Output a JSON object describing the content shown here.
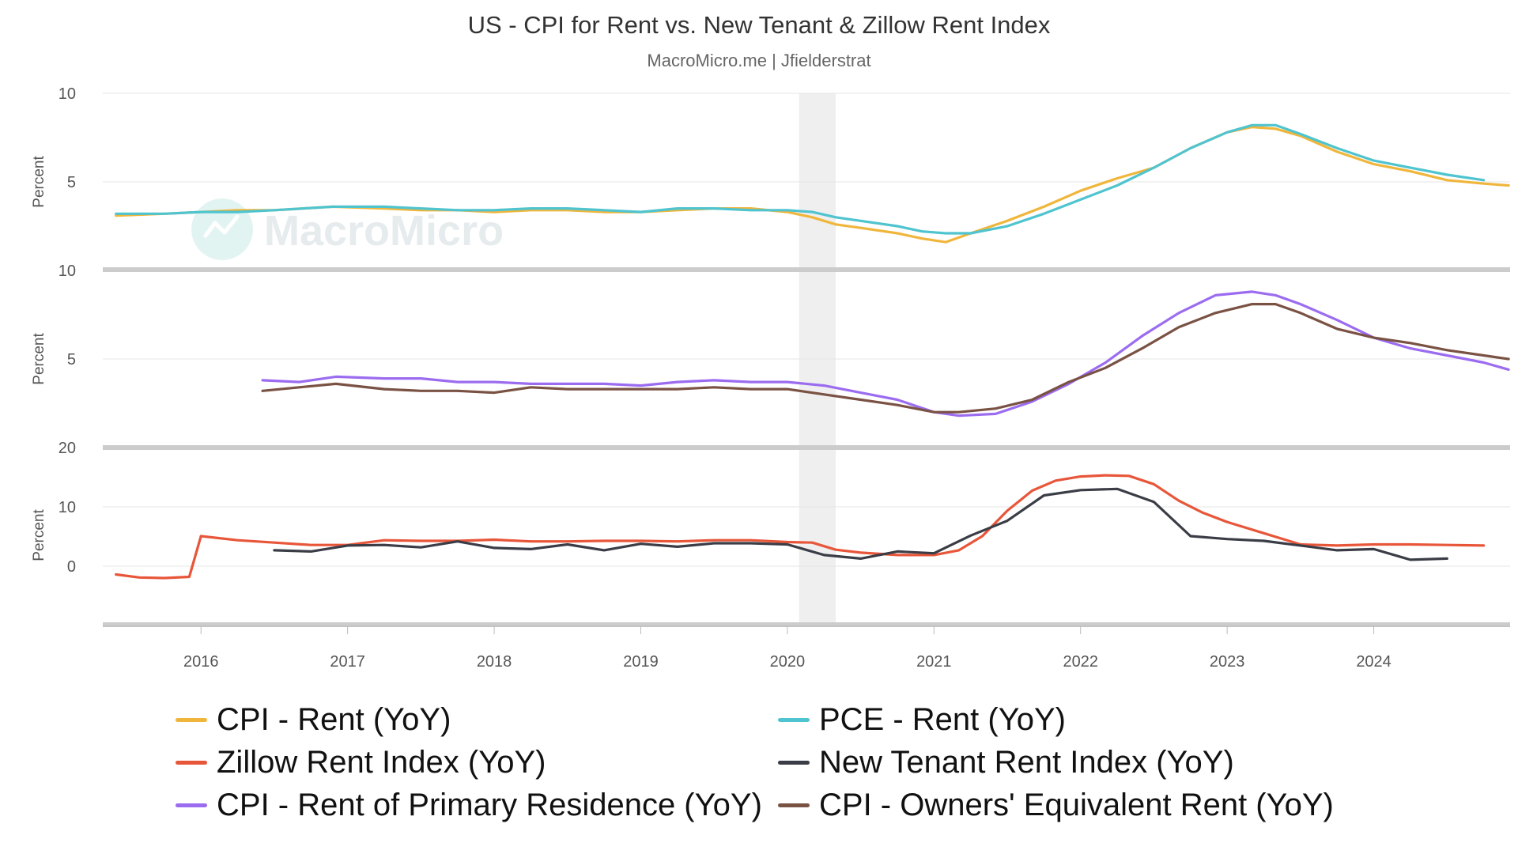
{
  "title": "US - CPI for Rent vs. New Tenant & Zillow Rent Index",
  "subtitle": "MacroMicro.me | Jfielderstrat",
  "watermark": "MacroMicro",
  "chart_data": {
    "type": "line",
    "x_axis": {
      "tick_labels": [
        "2016",
        "2017",
        "2018",
        "2019",
        "2020",
        "2021",
        "2022",
        "2023",
        "2024"
      ],
      "range": [
        2015.33,
        2024.93
      ]
    },
    "shaded_period": [
      2020.08,
      2020.33
    ],
    "panels": [
      {
        "ylabel": "Percent",
        "ylim": [
          0,
          10
        ],
        "tick_labels": [
          "10",
          "5"
        ],
        "series": [
          {
            "name": "CPI - Rent (YoY)",
            "color": "#f0b63c",
            "x": [
              2015.42,
              2015.75,
              2016.0,
              2016.25,
              2016.5,
              2016.9,
              2017.25,
              2017.5,
              2017.75,
              2018.0,
              2018.25,
              2018.5,
              2018.75,
              2019.0,
              2019.25,
              2019.5,
              2019.75,
              2020.0,
              2020.17,
              2020.33,
              2020.5,
              2020.75,
              2020.92,
              2021.08,
              2021.25,
              2021.5,
              2021.75,
              2022.0,
              2022.25,
              2022.5,
              2022.75,
              2023.0,
              2023.17,
              2023.33,
              2023.5,
              2023.75,
              2024.0,
              2024.25,
              2024.5,
              2024.75,
              2024.92
            ],
            "y": [
              3.1,
              3.2,
              3.3,
              3.4,
              3.4,
              3.6,
              3.5,
              3.4,
              3.4,
              3.3,
              3.4,
              3.4,
              3.3,
              3.3,
              3.4,
              3.5,
              3.5,
              3.3,
              3.0,
              2.6,
              2.4,
              2.1,
              1.8,
              1.6,
              2.1,
              2.8,
              3.6,
              4.5,
              5.2,
              5.8,
              6.9,
              7.8,
              8.1,
              8.0,
              7.6,
              6.7,
              6.0,
              5.6,
              5.1,
              4.9,
              4.8
            ]
          },
          {
            "name": "PCE - Rent (YoY)",
            "color": "#4fc4cf",
            "x": [
              2015.42,
              2015.75,
              2016.0,
              2016.25,
              2016.5,
              2016.9,
              2017.25,
              2017.5,
              2017.75,
              2018.0,
              2018.25,
              2018.5,
              2018.75,
              2019.0,
              2019.25,
              2019.5,
              2019.75,
              2020.0,
              2020.17,
              2020.33,
              2020.5,
              2020.75,
              2020.92,
              2021.08,
              2021.25,
              2021.5,
              2021.75,
              2022.0,
              2022.25,
              2022.5,
              2022.75,
              2023.0,
              2023.17,
              2023.33,
              2023.5,
              2023.75,
              2024.0,
              2024.25,
              2024.5,
              2024.75
            ],
            "y": [
              3.2,
              3.2,
              3.3,
              3.3,
              3.4,
              3.6,
              3.6,
              3.5,
              3.4,
              3.4,
              3.5,
              3.5,
              3.4,
              3.3,
              3.5,
              3.5,
              3.4,
              3.4,
              3.3,
              3.0,
              2.8,
              2.5,
              2.2,
              2.1,
              2.1,
              2.5,
              3.2,
              4.0,
              4.8,
              5.8,
              6.9,
              7.8,
              8.2,
              8.2,
              7.7,
              6.9,
              6.2,
              5.8,
              5.4,
              5.1
            ]
          }
        ]
      },
      {
        "ylabel": "Percent",
        "ylim": [
          0,
          10
        ],
        "tick_labels": [
          "10",
          "5"
        ],
        "series": [
          {
            "name": "CPI - Rent of Primary Residence (YoY)",
            "color": "#9b6cf0",
            "x": [
              2016.42,
              2016.67,
              2016.92,
              2017.25,
              2017.5,
              2017.75,
              2018.0,
              2018.25,
              2018.5,
              2018.75,
              2019.0,
              2019.25,
              2019.5,
              2019.75,
              2020.0,
              2020.25,
              2020.5,
              2020.75,
              2021.0,
              2021.17,
              2021.42,
              2021.67,
              2021.92,
              2022.17,
              2022.42,
              2022.67,
              2022.92,
              2023.17,
              2023.33,
              2023.5,
              2023.75,
              2024.0,
              2024.25,
              2024.5,
              2024.75,
              2024.92
            ],
            "y": [
              3.8,
              3.7,
              4.0,
              3.9,
              3.9,
              3.7,
              3.7,
              3.6,
              3.6,
              3.6,
              3.5,
              3.7,
              3.8,
              3.7,
              3.7,
              3.5,
              3.1,
              2.7,
              2.0,
              1.8,
              1.9,
              2.6,
              3.6,
              4.8,
              6.3,
              7.6,
              8.6,
              8.8,
              8.6,
              8.1,
              7.2,
              6.2,
              5.6,
              5.2,
              4.8,
              4.4
            ]
          },
          {
            "name": "CPI - Owners' Equivalent Rent (YoY)",
            "color": "#7a5244",
            "x": [
              2016.42,
              2016.67,
              2016.92,
              2017.25,
              2017.5,
              2017.75,
              2018.0,
              2018.25,
              2018.5,
              2018.75,
              2019.0,
              2019.25,
              2019.5,
              2019.75,
              2020.0,
              2020.25,
              2020.5,
              2020.75,
              2021.0,
              2021.17,
              2021.42,
              2021.67,
              2021.92,
              2022.17,
              2022.42,
              2022.67,
              2022.92,
              2023.17,
              2023.33,
              2023.5,
              2023.75,
              2024.0,
              2024.25,
              2024.5,
              2024.75,
              2024.92
            ],
            "y": [
              3.2,
              3.4,
              3.6,
              3.3,
              3.2,
              3.2,
              3.1,
              3.4,
              3.3,
              3.3,
              3.3,
              3.3,
              3.4,
              3.3,
              3.3,
              3.0,
              2.7,
              2.4,
              2.0,
              2.0,
              2.2,
              2.7,
              3.7,
              4.5,
              5.6,
              6.8,
              7.6,
              8.1,
              8.1,
              7.6,
              6.7,
              6.2,
              5.9,
              5.5,
              5.2,
              5.0
            ]
          }
        ]
      },
      {
        "ylabel": "Percent",
        "ylim": [
          -10,
          20
        ],
        "tick_labels": [
          "20",
          "10",
          "0"
        ],
        "series": [
          {
            "name": "Zillow Rent Index (YoY)",
            "color": "#e8563a",
            "x": [
              2015.42,
              2015.58,
              2015.75,
              2015.92,
              2016.0,
              2016.25,
              2016.5,
              2016.75,
              2017.0,
              2017.25,
              2017.5,
              2017.75,
              2018.0,
              2018.25,
              2018.5,
              2018.75,
              2019.0,
              2019.25,
              2019.5,
              2019.75,
              2020.0,
              2020.17,
              2020.33,
              2020.5,
              2020.75,
              2021.0,
              2021.17,
              2021.33,
              2021.5,
              2021.67,
              2021.83,
              2022.0,
              2022.17,
              2022.33,
              2022.5,
              2022.67,
              2022.83,
              2023.0,
              2023.25,
              2023.5,
              2023.75,
              2024.0,
              2024.25,
              2024.5,
              2024.75
            ],
            "y": [
              -1.5,
              -2.0,
              -2.1,
              -1.9,
              5.0,
              4.3,
              3.9,
              3.5,
              3.5,
              4.3,
              4.2,
              4.2,
              4.4,
              4.1,
              4.1,
              4.2,
              4.2,
              4.1,
              4.3,
              4.3,
              4.0,
              3.9,
              2.7,
              2.2,
              1.8,
              1.8,
              2.6,
              5.0,
              9.3,
              12.7,
              14.4,
              15.1,
              15.3,
              15.2,
              13.8,
              11.0,
              9.0,
              7.4,
              5.5,
              3.6,
              3.4,
              3.6,
              3.6,
              3.5,
              3.4
            ]
          },
          {
            "name": "New Tenant Rent Index (YoY)",
            "color": "#3a3d46",
            "x": [
              2016.5,
              2016.75,
              2017.0,
              2017.25,
              2017.5,
              2017.75,
              2018.0,
              2018.25,
              2018.5,
              2018.75,
              2019.0,
              2019.25,
              2019.5,
              2019.75,
              2020.0,
              2020.25,
              2020.5,
              2020.75,
              2021.0,
              2021.25,
              2021.5,
              2021.75,
              2022.0,
              2022.25,
              2022.5,
              2022.75,
              2023.0,
              2023.25,
              2023.5,
              2023.75,
              2024.0,
              2024.25,
              2024.5
            ],
            "y": [
              2.6,
              2.4,
              3.4,
              3.5,
              3.1,
              4.1,
              3.0,
              2.8,
              3.6,
              2.6,
              3.7,
              3.2,
              3.8,
              3.8,
              3.6,
              1.8,
              1.2,
              2.4,
              2.1,
              5.1,
              7.6,
              11.9,
              12.8,
              13.0,
              10.8,
              5.0,
              4.5,
              4.2,
              3.4,
              2.6,
              2.8,
              1.0,
              1.2
            ]
          }
        ]
      }
    ],
    "legend": {
      "placement": "bottom",
      "entries": [
        {
          "label": "CPI - Rent (YoY)",
          "color": "#f0b63c"
        },
        {
          "label": "PCE - Rent (YoY)",
          "color": "#4fc4cf"
        },
        {
          "label": "Zillow Rent Index (YoY)",
          "color": "#e8563a"
        },
        {
          "label": "New Tenant Rent Index (YoY)",
          "color": "#3a3d46"
        },
        {
          "label": "CPI - Rent of Primary Residence (YoY)",
          "color": "#9b6cf0"
        },
        {
          "label": "CPI - Owners' Equivalent Rent (YoY)",
          "color": "#7a5244"
        }
      ]
    }
  }
}
